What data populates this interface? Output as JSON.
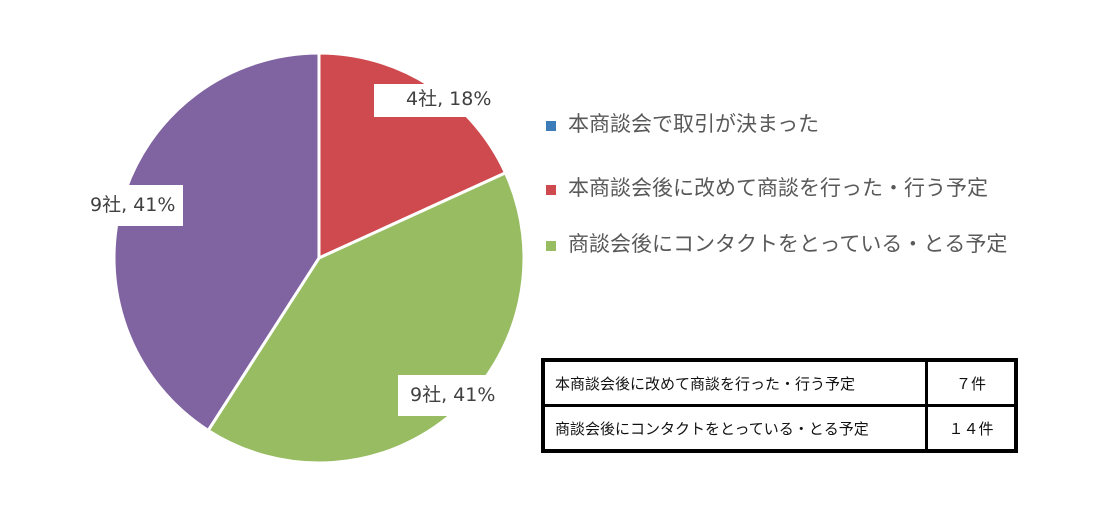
{
  "chart_data": {
    "type": "pie",
    "title": "",
    "categories": [
      "本商談会で取引が決まった",
      "本商談会後に改めて商談を行った・行う予定",
      "商談会後にコンタクトをとっている・とる予定",
      ""
    ],
    "values": [
      0,
      4,
      9,
      9
    ],
    "percentages": [
      0,
      18,
      41,
      41
    ],
    "colors": [
      "#4a7ebb",
      "#ce4a4e",
      "#98bc62",
      "#8064a2"
    ],
    "data_labels": [
      "",
      "4社, 18%",
      "9社, 41%",
      "9社, 41%"
    ],
    "start_angle_deg": 0,
    "legend_position": "right"
  },
  "legend": {
    "items": [
      {
        "label": "本商談会で取引が決まった",
        "color": "#3c7cb8"
      },
      {
        "label": "本商談会後に改めて商談を行った・行う予定",
        "color": "#ce4a4e"
      },
      {
        "label": "商談会後にコンタクトをとっている・とる予定",
        "color": "#98bc62"
      }
    ]
  },
  "labels": {
    "red": "4社, 18%",
    "green": "9社, 41%",
    "purple": "9社, 41%"
  },
  "summary_table": {
    "rows": [
      {
        "label": "本商談会後に改めて商談を行った・行う予定",
        "value": "７件"
      },
      {
        "label": "商談会後にコンタクトをとっている・とる予定",
        "value": "１４件"
      }
    ]
  }
}
